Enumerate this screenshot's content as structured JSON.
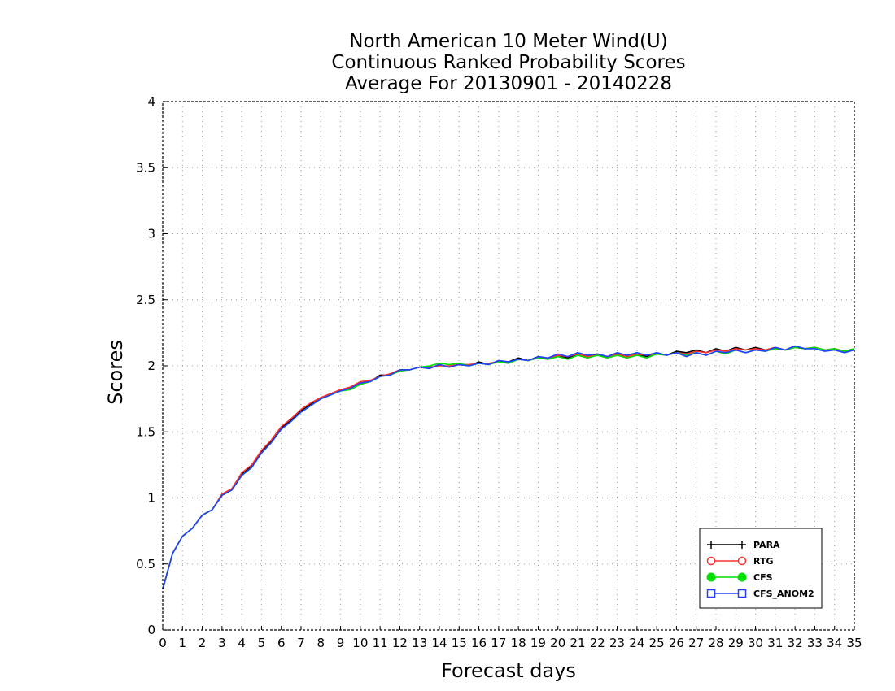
{
  "chart_data": {
    "type": "line",
    "title": [
      "North American 10 Meter Wind(U)",
      "Continuous Ranked Probability Scores",
      "Average For 20130901 - 20140228"
    ],
    "xlabel": "Forecast days",
    "ylabel": "Scores",
    "xlim": [
      0,
      35
    ],
    "ylim": [
      0,
      4
    ],
    "xticks": [
      "0",
      "1",
      "2",
      "3",
      "4",
      "5",
      "6",
      "7",
      "8",
      "9",
      "10",
      "11",
      "12",
      "13",
      "14",
      "15",
      "16",
      "17",
      "18",
      "19",
      "20",
      "21",
      "22",
      "23",
      "24",
      "25",
      "26",
      "27",
      "28",
      "29",
      "30",
      "31",
      "32",
      "33",
      "34",
      "35"
    ],
    "yticks": [
      "0",
      "0.5",
      "1",
      "1.5",
      "2",
      "2.5",
      "3",
      "3.5",
      "4"
    ],
    "grid": true,
    "legend_position": "bottom-right",
    "x": [
      0,
      0.5,
      1,
      1.5,
      2,
      2.5,
      3,
      3.5,
      4,
      4.5,
      5,
      5.5,
      6,
      6.5,
      7,
      7.5,
      8,
      8.5,
      9,
      9.5,
      10,
      10.5,
      11,
      11.5,
      12,
      12.5,
      13,
      13.5,
      14,
      14.5,
      15,
      15.5,
      16,
      16.5,
      17,
      17.5,
      18,
      18.5,
      19,
      19.5,
      20,
      20.5,
      21,
      21.5,
      22,
      22.5,
      23,
      23.5,
      24,
      24.5,
      25,
      25.5,
      26,
      26.5,
      27,
      27.5,
      28,
      28.5,
      29,
      29.5,
      30,
      30.5,
      31,
      31.5,
      32,
      32.5,
      33,
      33.5,
      34,
      34.5,
      35
    ],
    "series": [
      {
        "name": "PARA",
        "color": "#000000",
        "marker": "plus",
        "values": [
          0.31,
          0.58,
          0.71,
          0.77,
          0.87,
          0.91,
          1.02,
          1.07,
          1.18,
          1.24,
          1.35,
          1.43,
          1.53,
          1.59,
          1.66,
          1.71,
          1.76,
          1.78,
          1.82,
          1.83,
          1.87,
          1.88,
          1.93,
          1.93,
          1.97,
          1.97,
          1.99,
          1.98,
          2.01,
          1.99,
          2.01,
          2.0,
          2.03,
          2.01,
          2.04,
          2.03,
          2.06,
          2.04,
          2.07,
          2.05,
          2.08,
          2.06,
          2.09,
          2.07,
          2.09,
          2.07,
          2.09,
          2.07,
          2.09,
          2.07,
          2.1,
          2.08,
          2.11,
          2.1,
          2.12,
          2.1,
          2.13,
          2.11,
          2.14,
          2.12,
          2.14,
          2.12,
          2.14,
          2.12,
          2.15,
          2.13,
          2.14,
          2.12,
          2.13,
          2.11,
          2.13
        ]
      },
      {
        "name": "RTG",
        "color": "#ff3030",
        "marker": "circle-open",
        "values": [
          0.31,
          0.58,
          0.71,
          0.77,
          0.87,
          0.91,
          1.03,
          1.07,
          1.19,
          1.25,
          1.36,
          1.44,
          1.54,
          1.6,
          1.67,
          1.72,
          1.76,
          1.79,
          1.82,
          1.84,
          1.88,
          1.89,
          1.92,
          1.94,
          1.97,
          1.97,
          1.99,
          1.99,
          2.0,
          2.0,
          2.01,
          2.01,
          2.02,
          2.02,
          2.03,
          2.02,
          2.05,
          2.04,
          2.06,
          2.06,
          2.08,
          2.07,
          2.09,
          2.07,
          2.08,
          2.07,
          2.09,
          2.07,
          2.09,
          2.08,
          2.09,
          2.08,
          2.1,
          2.09,
          2.11,
          2.1,
          2.12,
          2.11,
          2.13,
          2.12,
          2.13,
          2.12,
          2.14,
          2.12,
          2.14,
          2.13,
          2.14,
          2.12,
          2.13,
          2.11,
          2.13
        ]
      },
      {
        "name": "CFS",
        "color": "#00dd00",
        "marker": "circle-filled",
        "values": [
          0.31,
          0.58,
          0.71,
          0.77,
          0.87,
          0.91,
          1.02,
          1.06,
          1.17,
          1.23,
          1.34,
          1.42,
          1.52,
          1.58,
          1.65,
          1.7,
          1.75,
          1.78,
          1.81,
          1.82,
          1.86,
          1.88,
          1.92,
          1.93,
          1.96,
          1.97,
          1.99,
          2.0,
          2.02,
          2.01,
          2.02,
          2.0,
          2.02,
          2.01,
          2.03,
          2.02,
          2.05,
          2.04,
          2.06,
          2.05,
          2.07,
          2.05,
          2.08,
          2.06,
          2.08,
          2.06,
          2.08,
          2.06,
          2.08,
          2.06,
          2.09,
          2.08,
          2.1,
          2.08,
          2.1,
          2.08,
          2.11,
          2.09,
          2.12,
          2.1,
          2.12,
          2.11,
          2.13,
          2.12,
          2.14,
          2.13,
          2.14,
          2.12,
          2.13,
          2.11,
          2.13
        ]
      },
      {
        "name": "CFS_ANOM2",
        "color": "#2040ff",
        "marker": "square-open",
        "values": [
          0.31,
          0.58,
          0.71,
          0.77,
          0.87,
          0.91,
          1.02,
          1.06,
          1.17,
          1.23,
          1.34,
          1.42,
          1.52,
          1.58,
          1.65,
          1.7,
          1.75,
          1.78,
          1.81,
          1.83,
          1.87,
          1.88,
          1.92,
          1.93,
          1.97,
          1.97,
          1.99,
          1.98,
          2.01,
          1.99,
          2.01,
          2.0,
          2.02,
          2.01,
          2.04,
          2.03,
          2.05,
          2.04,
          2.07,
          2.06,
          2.09,
          2.07,
          2.1,
          2.08,
          2.09,
          2.07,
          2.1,
          2.08,
          2.1,
          2.08,
          2.1,
          2.08,
          2.1,
          2.07,
          2.1,
          2.08,
          2.11,
          2.1,
          2.12,
          2.1,
          2.12,
          2.11,
          2.14,
          2.12,
          2.15,
          2.13,
          2.13,
          2.11,
          2.12,
          2.1,
          2.12
        ]
      }
    ]
  }
}
